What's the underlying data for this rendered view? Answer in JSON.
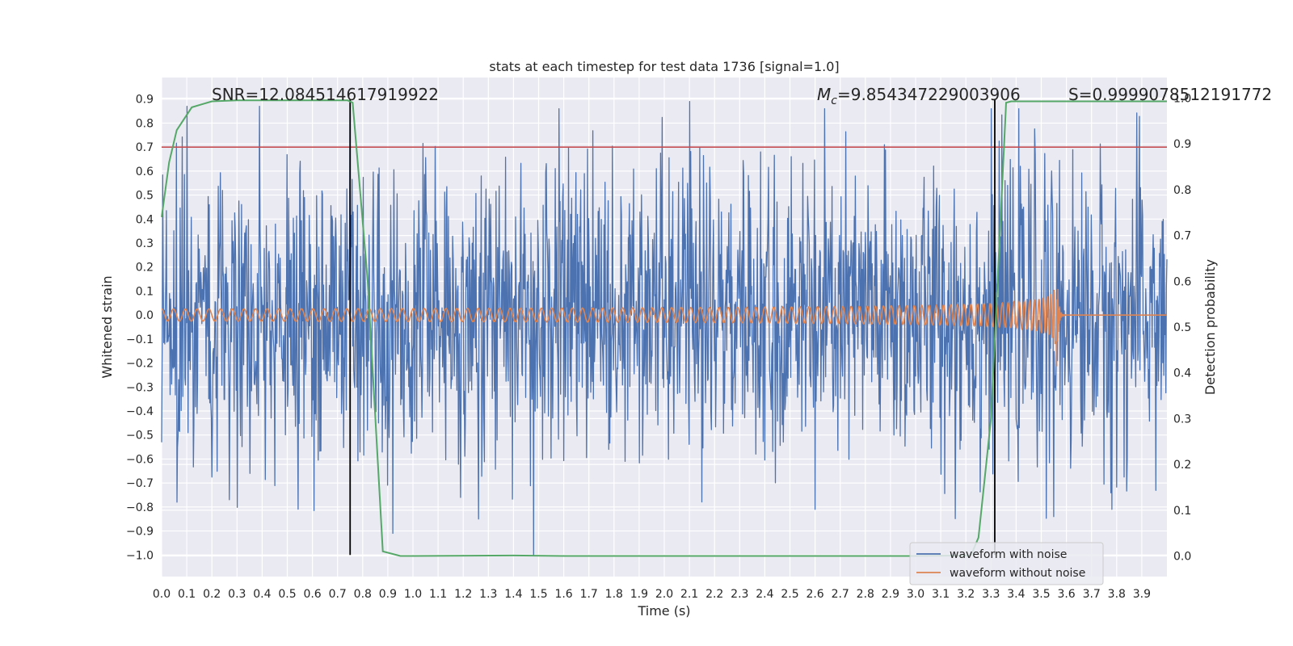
{
  "chart_data": {
    "type": "line",
    "title": "stats at each timestep for test data 1736 [signal=1.0]",
    "xlabel": "Time (s)",
    "ylabel": "Whitened strain",
    "ylabel_right": "Detection probability",
    "xlim": [
      0.0,
      4.0
    ],
    "ylim": [
      -1.09,
      0.99
    ],
    "ylim_right": [
      -0.045,
      1.045
    ],
    "x_ticks": [
      "0.0",
      "0.1",
      "0.2",
      "0.3",
      "0.4",
      "0.5",
      "0.6",
      "0.7",
      "0.8",
      "0.9",
      "1.0",
      "1.1",
      "1.2",
      "1.3",
      "1.4",
      "1.5",
      "1.6",
      "1.7",
      "1.8",
      "1.9",
      "2.0",
      "2.1",
      "2.2",
      "2.3",
      "2.4",
      "2.5",
      "2.6",
      "2.7",
      "2.8",
      "2.9",
      "3.0",
      "3.1",
      "3.2",
      "3.3",
      "3.4",
      "3.5",
      "3.6",
      "3.7",
      "3.8",
      "3.9"
    ],
    "y_ticks": [
      "0.9",
      "0.8",
      "0.7",
      "0.6",
      "0.5",
      "0.4",
      "0.3",
      "0.2",
      "0.1",
      "0.0",
      "−0.1",
      "−0.2",
      "−0.3",
      "−0.4",
      "−0.5",
      "−0.6",
      "−0.7",
      "−0.8",
      "−0.9",
      "−1.0"
    ],
    "y_ticks_right": [
      "1.0",
      "0.9",
      "0.8",
      "0.7",
      "0.6",
      "0.5",
      "0.4",
      "0.3",
      "0.2",
      "0.1",
      "0.0"
    ],
    "annotations": {
      "snr": "SNR=12.084514617919922",
      "mc": "=9.854347229003906",
      "mc_symbol": "M",
      "mc_subscript": "c",
      "s": "S=0.9999078512191772"
    },
    "threshold": {
      "value": 0.7,
      "color": "#c44e52"
    },
    "vlines": [
      0.75,
      3.315
    ],
    "series": [
      {
        "name": "waveform with noise",
        "color": "#4c72b0",
        "style": "noise",
        "amplitude_typical": 0.32,
        "peaks": [
          {
            "x": 0.1,
            "y": 0.87
          },
          {
            "x": 0.39,
            "y": 0.87
          },
          {
            "x": 0.75,
            "y": 0.88
          },
          {
            "x": 2.1,
            "y": 0.89
          },
          {
            "x": 1.48,
            "y": -1.0
          },
          {
            "x": 0.06,
            "y": -0.78
          },
          {
            "x": 0.92,
            "y": -0.91
          },
          {
            "x": 1.26,
            "y": -0.85
          },
          {
            "x": 2.6,
            "y": -0.81
          },
          {
            "x": 3.78,
            "y": -0.81
          },
          {
            "x": 3.55,
            "y": -0.84
          },
          {
            "x": 0.27,
            "y": -0.77
          }
        ]
      },
      {
        "name": "waveform without noise",
        "color": "#dd8452",
        "style": "chirp",
        "t_merger": 3.56,
        "amp_start": 0.025,
        "amp_peak": 0.33
      },
      {
        "name": "Detection probability",
        "color": "#55a868",
        "axis": "right",
        "x": [
          0.0,
          0.03,
          0.06,
          0.12,
          0.2,
          0.3,
          0.5,
          0.74,
          0.76,
          0.82,
          0.88,
          0.95,
          1.0,
          1.4,
          1.6,
          2.0,
          2.5,
          3.0,
          3.22,
          3.25,
          3.3,
          3.36,
          3.38,
          3.5,
          3.8,
          4.0
        ],
        "y": [
          0.74,
          0.86,
          0.93,
          0.98,
          0.993,
          0.995,
          0.995,
          0.995,
          0.99,
          0.6,
          0.01,
          0.0,
          0.0,
          0.001,
          0.0,
          0.0,
          0.0,
          0.0,
          0.001,
          0.04,
          0.3,
          0.99,
          0.993,
          0.993,
          0.993,
          0.993
        ]
      }
    ],
    "legend": {
      "placement": "lower right",
      "entries": [
        "waveform with noise",
        "waveform without noise"
      ]
    },
    "grid": true
  }
}
